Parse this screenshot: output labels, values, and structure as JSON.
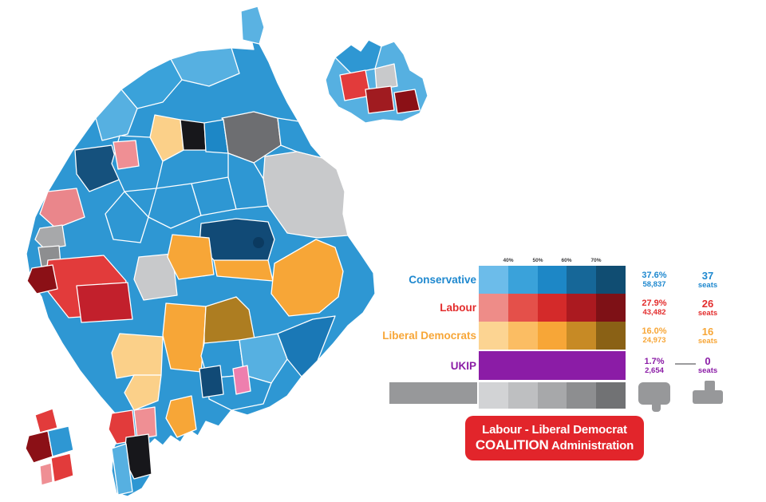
{
  "legend": {
    "band_labels": [
      "40%",
      "50%",
      "60%",
      "70%"
    ],
    "rows": [
      {
        "party": "Conservative",
        "color": "#1e88cf",
        "swatches": [
          "#6cbcea",
          "#3aa2da",
          "#1d87c6",
          "#166798",
          "#104d72"
        ],
        "pct": "37.6%",
        "votes": "58,837",
        "seats": "37",
        "seats_word": "seats"
      },
      {
        "party": "Labour",
        "color": "#e32d2d",
        "swatches": [
          "#ee8c88",
          "#e4504a",
          "#d42a2a",
          "#ab1a20",
          "#7e1116"
        ],
        "pct": "27.9%",
        "votes": "43,482",
        "seats": "26",
        "seats_word": "seats"
      },
      {
        "party": "Liberal Democrats",
        "color": "#f7a637",
        "swatches": [
          "#fcd492",
          "#fbbd63",
          "#f7a637",
          "#c78a25",
          "#8a6115"
        ],
        "pct": "16.0%",
        "votes": "24,973",
        "seats": "16",
        "seats_word": "seats"
      },
      {
        "party": "UKIP",
        "color": "#8b1ca6",
        "swatches": [
          "#8b1ca6",
          "#8b1ca6",
          "#8b1ca6",
          "#8b1ca6",
          "#8b1ca6"
        ],
        "pct": "1.7%",
        "votes": "2,654",
        "seats": "0",
        "seats_word": "seats"
      },
      {
        "party": "",
        "color": "#97989a",
        "swatches": [
          "#d2d3d5",
          "#bebfc1",
          "#a7a8aa",
          "#8d8e90",
          "#717274"
        ],
        "pct": "",
        "votes": "",
        "seats": "",
        "seats_word": ""
      }
    ]
  },
  "coalition_banner": {
    "line1": "Labour - Liberal Democrat",
    "line2_emphasis": "COALITION",
    "line2_rest": " Administration",
    "bg_color": "#e2252b",
    "text_color": "#ffffff"
  },
  "map": {
    "base_color": "#2e97d3",
    "party_palette": {
      "conservative": [
        "#6cbcea",
        "#3aa2da",
        "#1d87c6",
        "#166798",
        "#104d72"
      ],
      "labour": [
        "#ee8c88",
        "#e4504a",
        "#d42a2a",
        "#ab1a20",
        "#7e1116"
      ],
      "liberal_democrats": [
        "#fcd492",
        "#fbbd63",
        "#f7a637",
        "#c78a25",
        "#8a6115"
      ],
      "independent": [
        "#d2d3d5",
        "#bebfc1",
        "#a7a8aa",
        "#8d8e90",
        "#717274"
      ],
      "other": "#17171b"
    }
  }
}
